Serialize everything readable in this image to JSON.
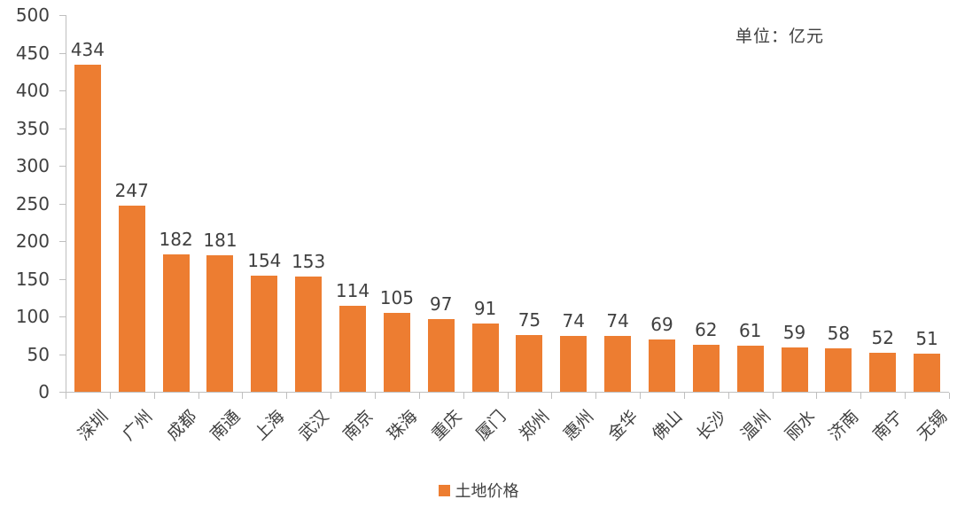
{
  "unit_label": "单位：亿元",
  "legend": {
    "label": "土地价格",
    "swatch_color": "#ED7D31"
  },
  "colors": {
    "bar": "#ED7D31",
    "axis": "#BFBFBF",
    "text": "#404040"
  },
  "chart_data": {
    "type": "bar",
    "categories": [
      "深圳",
      "广州",
      "成都",
      "南通",
      "上海",
      "武汉",
      "南京",
      "珠海",
      "重庆",
      "厦门",
      "郑州",
      "惠州",
      "金华",
      "佛山",
      "长沙",
      "温州",
      "丽水",
      "济南",
      "南宁",
      "无锡"
    ],
    "values": [
      434,
      247,
      182,
      181,
      154,
      153,
      114,
      105,
      97,
      91,
      75,
      74,
      74,
      69,
      62,
      61,
      59,
      58,
      52,
      51
    ],
    "series_name": "土地价格",
    "title": "",
    "xlabel": "",
    "ylabel": "",
    "ylim": [
      0,
      500
    ],
    "y_ticks": [
      0,
      50,
      100,
      150,
      200,
      250,
      300,
      350,
      400,
      450,
      500
    ],
    "grid": false,
    "legend_position": "bottom",
    "data_labels": true,
    "unit_annotation": "单位：亿元",
    "bar_color": "#ED7D31"
  }
}
